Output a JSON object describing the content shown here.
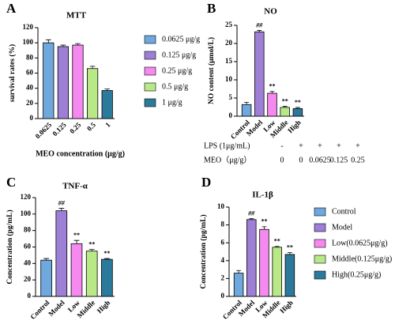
{
  "chart_data": [
    {
      "type": "bar",
      "label": "A",
      "title": "MTT",
      "y_label": "survival rates (%)",
      "x_label": "MEO concentration (μg/g)",
      "categories": [
        "0.0625",
        "0.125",
        "0.25",
        "0.5",
        "1"
      ],
      "values": [
        100,
        95,
        97,
        66,
        37
      ],
      "errors": [
        4,
        2,
        2,
        3,
        2
      ],
      "colors": [
        "#6fa8dc",
        "#9e7fd6",
        "#f589f0",
        "#b8e986",
        "#2b7a9b"
      ],
      "legend": [
        "0.0625 μg/g",
        "0.125 μg/g",
        "0.25 μg/g",
        "0.5 μg/g",
        "1 μg/g"
      ],
      "ylim": [
        0,
        120
      ],
      "yticks": [
        0,
        20,
        40,
        60,
        80,
        100,
        120
      ]
    },
    {
      "type": "bar",
      "label": "B",
      "title": "NO",
      "y_label": "NO content (μmol/L)",
      "categories": [
        "Control",
        "Model",
        "Low",
        "Middle",
        "High"
      ],
      "values": [
        3.2,
        23.2,
        6.3,
        2.4,
        2.1
      ],
      "errors": [
        0.6,
        0.4,
        0.5,
        0.3,
        0.3
      ],
      "colors": [
        "#6fa8dc",
        "#9e7fd6",
        "#f589f0",
        "#b8e986",
        "#2b7a9b"
      ],
      "annotations": [
        null,
        "##",
        "**",
        "**",
        "**"
      ],
      "ylim": [
        0,
        25
      ],
      "yticks": [
        0,
        5,
        10,
        15,
        20,
        25
      ],
      "table": {
        "row_labels": [
          "LPS (1μg/mL)",
          "MEO（μg/g）"
        ],
        "rows": [
          [
            "-",
            "+",
            "+",
            "+",
            "+"
          ],
          [
            "0",
            "0",
            "0.0625",
            "0.125",
            "0.25"
          ]
        ]
      }
    },
    {
      "type": "bar",
      "label": "C",
      "title": "TNF-α",
      "y_label": "Concentration (pg/mL)",
      "categories": [
        "Control",
        "Model",
        "Low",
        "Middle",
        "High"
      ],
      "values": [
        44,
        104,
        64,
        55,
        45
      ],
      "errors": [
        2,
        3,
        4,
        2,
        1
      ],
      "colors": [
        "#6fa8dc",
        "#9e7fd6",
        "#f589f0",
        "#b8e986",
        "#2b7a9b"
      ],
      "annotations": [
        null,
        "##",
        "**",
        "**",
        "**"
      ],
      "ylim": [
        0,
        120
      ],
      "yticks": [
        0,
        20,
        40,
        60,
        80,
        100,
        120
      ]
    },
    {
      "type": "bar",
      "label": "D",
      "title": "IL-1β",
      "y_label": "Concentration (pg/mL)",
      "categories": [
        "Control",
        "Model",
        "Low",
        "Middle",
        "High"
      ],
      "values": [
        2.6,
        8.6,
        7.5,
        5.5,
        4.7
      ],
      "errors": [
        0.3,
        0.1,
        0.3,
        0.1,
        0.2
      ],
      "colors": [
        "#6fa8dc",
        "#9e7fd6",
        "#f589f0",
        "#b8e986",
        "#2b7a9b"
      ],
      "annotations": [
        null,
        "##",
        "**",
        "**",
        "**"
      ],
      "legend": [
        "Control",
        "Model",
        "Low(0.0625μg/g)",
        "Middle(0.125μg/g)",
        "High(0.25μg/g)"
      ],
      "ylim": [
        0,
        10
      ],
      "yticks": [
        0,
        2,
        4,
        6,
        8,
        10
      ]
    }
  ]
}
